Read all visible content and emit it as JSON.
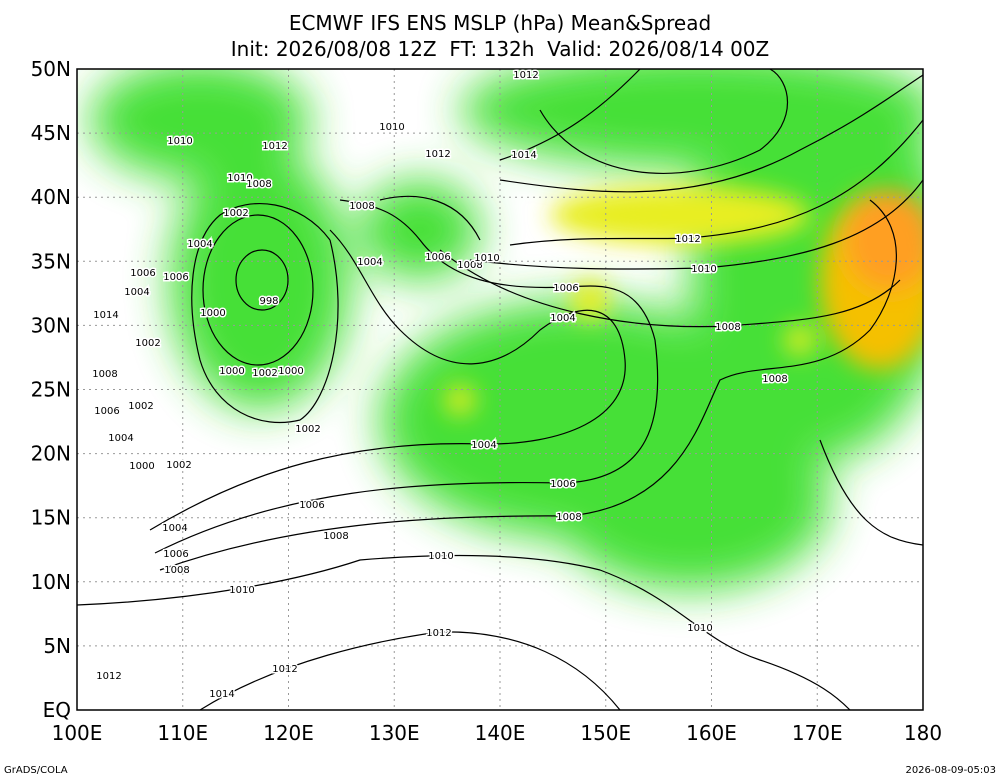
{
  "title": "ECMWF IFS ENS MSLP (hPa) Mean&Spread",
  "subtitle": "Init: 2026/08/08 12Z  FT: 132h  Valid: 2026/08/14 00Z",
  "lat_labels": [
    "50N",
    "45N",
    "40N",
    "35N",
    "30N",
    "25N",
    "20N",
    "15N",
    "10N",
    "5N",
    "EQ"
  ],
  "lon_labels": [
    "100E",
    "110E",
    "120E",
    "130E",
    "140E",
    "150E",
    "160E",
    "170E",
    "180"
  ],
  "contour_labels": [
    "1012",
    "1010",
    "1012",
    "1010",
    "1012",
    "1014",
    "1010",
    "1008",
    "1002",
    "1008",
    "1004",
    "1006",
    "1006",
    "1004",
    "1004",
    "1006",
    "1008",
    "1010",
    "1012",
    "1010",
    "1006",
    "998",
    "1000",
    "1014",
    "1004",
    "1008",
    "1002",
    "1008",
    "1000",
    "1002",
    "1000",
    "1008",
    "1006",
    "1002",
    "1002",
    "1004",
    "1004",
    "1000",
    "1002",
    "1006",
    "1006",
    "1008",
    "1004",
    "1008",
    "1006",
    "1010",
    "1008",
    "1010",
    "1012",
    "1010",
    "1012",
    "1012",
    "1014"
  ],
  "footer": {
    "left": "GrADS/COLA",
    "right": "2026-08-09-05:03"
  }
}
